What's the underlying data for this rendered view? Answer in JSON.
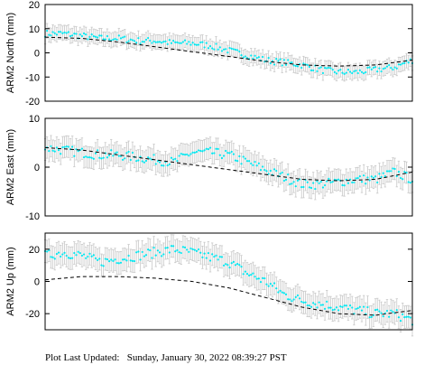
{
  "footer": {
    "label": "Plot Last Updated:",
    "timestamp": "Sunday, January 30, 2022 08:39:27 PST"
  },
  "colors": {
    "points": "#00e5ee",
    "errorbars": "#c8c8c8",
    "model": "#000000",
    "frame": "#000000"
  },
  "chart_data": [
    {
      "type": "scatter",
      "ylabel": "ARM2 North (mm)",
      "ylim": [
        -20,
        20
      ],
      "yticks": [
        -20,
        -10,
        0,
        10,
        20
      ],
      "grid": false,
      "x_range": [
        0,
        1
      ],
      "error_bar_mm": 3,
      "series": [
        {
          "style": "points",
          "x": [
            0.0,
            0.05,
            0.1,
            0.15,
            0.2,
            0.25,
            0.3,
            0.35,
            0.4,
            0.45,
            0.5,
            0.55,
            0.6,
            0.65,
            0.7,
            0.75,
            0.8,
            0.85,
            0.9,
            0.95,
            1.0
          ],
          "y": [
            8,
            8,
            7,
            6,
            6,
            5,
            5,
            4,
            4,
            3,
            1,
            -1,
            -3,
            -4,
            -5,
            -7,
            -8,
            -8,
            -7,
            -6,
            -3
          ]
        },
        {
          "style": "dashed-line",
          "x": [
            0.0,
            0.1,
            0.2,
            0.3,
            0.4,
            0.5,
            0.6,
            0.7,
            0.8,
            0.9,
            1.0
          ],
          "y": [
            6.5,
            6,
            4.5,
            2.5,
            0.5,
            -1.5,
            -3.5,
            -5,
            -5.5,
            -5,
            -3
          ]
        }
      ]
    },
    {
      "type": "scatter",
      "ylabel": "ARM2 East (mm)",
      "ylim": [
        -10,
        10
      ],
      "yticks": [
        -10,
        0,
        10
      ],
      "grid": false,
      "x_range": [
        0,
        1
      ],
      "error_bar_mm": 2.2,
      "series": [
        {
          "style": "points",
          "x": [
            0.0,
            0.05,
            0.1,
            0.15,
            0.2,
            0.25,
            0.3,
            0.35,
            0.4,
            0.45,
            0.5,
            0.55,
            0.6,
            0.65,
            0.7,
            0.75,
            0.8,
            0.85,
            0.9,
            0.95,
            1.0
          ],
          "y": [
            4,
            3.5,
            3,
            2.5,
            2.5,
            2,
            1.5,
            1,
            3,
            3,
            2.5,
            1,
            -0.5,
            -2,
            -3.5,
            -3.5,
            -3,
            -2.5,
            -2.5,
            -1,
            -2.5
          ]
        },
        {
          "style": "dashed-line",
          "x": [
            0.0,
            0.1,
            0.2,
            0.3,
            0.4,
            0.5,
            0.6,
            0.7,
            0.8,
            0.9,
            1.0
          ],
          "y": [
            4,
            3.5,
            2.5,
            1.5,
            0.5,
            -0.5,
            -1.5,
            -2.5,
            -2.8,
            -2.5,
            -1
          ]
        }
      ]
    },
    {
      "type": "scatter",
      "ylabel": "ARM2 Up (mm)",
      "ylim": [
        -30,
        30
      ],
      "yticks": [
        -20,
        0,
        20
      ],
      "grid": false,
      "x_range": [
        0,
        1
      ],
      "error_bar_mm": 7,
      "series": [
        {
          "style": "points",
          "x": [
            0.0,
            0.05,
            0.1,
            0.15,
            0.2,
            0.25,
            0.3,
            0.35,
            0.4,
            0.45,
            0.5,
            0.55,
            0.6,
            0.65,
            0.7,
            0.75,
            0.8,
            0.85,
            0.9,
            0.95,
            1.0
          ],
          "y": [
            16,
            18,
            16,
            12,
            14,
            16,
            18,
            20,
            18,
            15,
            12,
            5,
            0,
            -8,
            -12,
            -14,
            -16,
            -18,
            -20,
            -20,
            -24
          ]
        },
        {
          "style": "dashed-line",
          "x": [
            0.0,
            0.1,
            0.2,
            0.3,
            0.4,
            0.5,
            0.6,
            0.7,
            0.8,
            0.9,
            1.0
          ],
          "y": [
            1,
            3,
            3,
            2,
            0,
            -4,
            -10,
            -16,
            -20,
            -21,
            -18
          ]
        }
      ]
    }
  ]
}
